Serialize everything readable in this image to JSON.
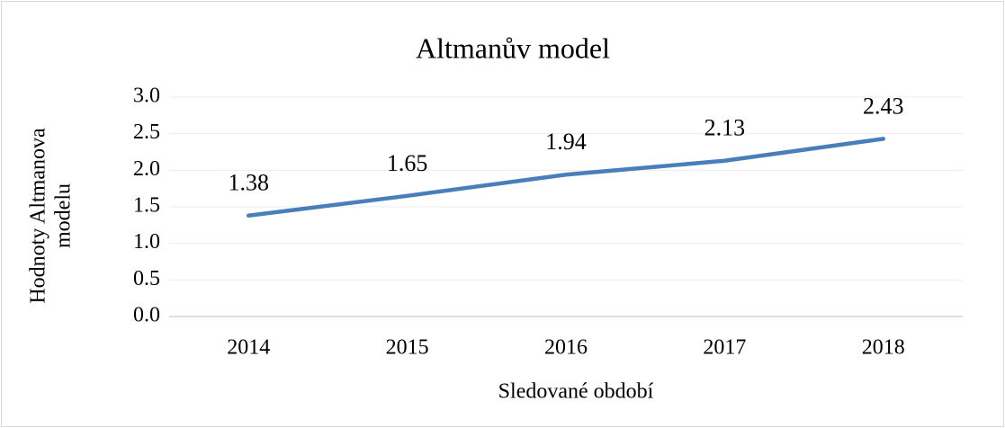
{
  "chart_data": {
    "type": "line",
    "title": "Altmanův model",
    "x_label": "Sledované období",
    "y_label": [
      "Hodnoty Altmanova",
      "modelu"
    ],
    "categories": [
      "2014",
      "2015",
      "2016",
      "2017",
      "2018"
    ],
    "series": [
      {
        "name": "Altmanův model",
        "color": "#4a7ebb",
        "values": [
          1.38,
          1.65,
          1.94,
          2.13,
          2.43
        ]
      }
    ],
    "ylim": [
      0,
      3
    ],
    "yticks": [
      {
        "value": 0,
        "label": "0.0"
      },
      0.5,
      {
        "value": 1,
        "label": "1.0"
      },
      1.5,
      {
        "value": 2,
        "label": "2.0"
      },
      2.5,
      {
        "value": 3,
        "label": "3.0"
      }
    ],
    "grid": true
  }
}
